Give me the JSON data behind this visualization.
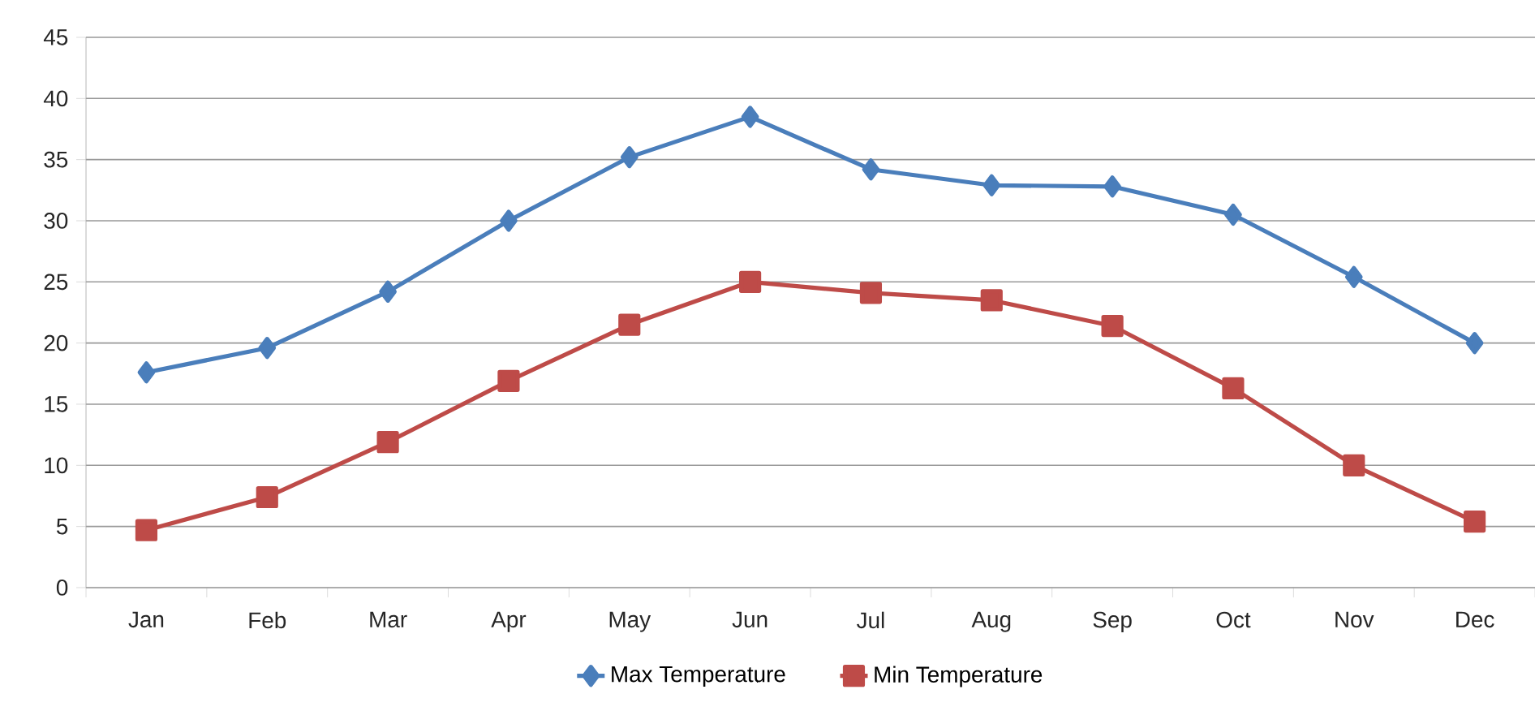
{
  "chart_data": {
    "type": "line",
    "categories": [
      "Jan",
      "Feb",
      "Mar",
      "Apr",
      "May",
      "Jun",
      "Jul",
      "Aug",
      "Sep",
      "Oct",
      "Nov",
      "Dec"
    ],
    "series": [
      {
        "name": "Max Temperature",
        "color": "#4a7ebb",
        "marker": "diamond",
        "values": [
          17.6,
          19.6,
          24.2,
          30.0,
          35.2,
          38.5,
          34.2,
          32.9,
          32.8,
          30.5,
          25.4,
          20.0
        ]
      },
      {
        "name": "Min Temperature",
        "color": "#be4b48",
        "marker": "square",
        "values": [
          4.7,
          7.4,
          11.9,
          16.9,
          21.5,
          25.0,
          24.1,
          23.5,
          21.4,
          16.3,
          10.0,
          5.4
        ]
      }
    ],
    "ylim": [
      0,
      45
    ],
    "yticks": [
      0,
      5,
      10,
      15,
      20,
      25,
      30,
      35,
      40,
      45
    ],
    "grid": "y",
    "legend": "bottom",
    "line_style": "solid"
  }
}
